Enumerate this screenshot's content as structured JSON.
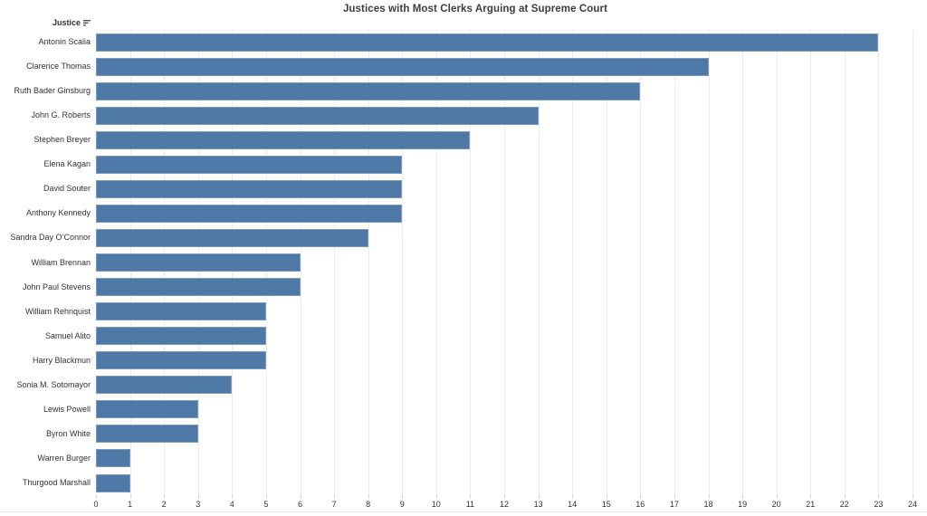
{
  "header": {
    "label": "Justice",
    "sort_icon": "sort-descending-icon"
  },
  "colors": {
    "bar": "#4e79a7",
    "text": "#333333",
    "grid": "#ededed",
    "divider": "#e6e6e6"
  },
  "chart_data": {
    "type": "bar",
    "orientation": "horizontal",
    "title": "Justices with Most Clerks Arguing at Supreme Court",
    "categories": [
      "Antonin Scalia",
      "Clarence Thomas",
      "Ruth Bader Ginsburg",
      "John G. Roberts",
      "Stephen Breyer",
      "Elena Kagan",
      "David Souter",
      "Anthony Kennedy",
      "Sandra Day O’Connor",
      "William Brennan",
      "John Paul Stevens",
      "William Rehnquist",
      "Samuel Alito",
      "Harry Blackmun",
      "Sonia M. Sotomayor",
      "Lewis Powell",
      "Byron White",
      "Warren Burger",
      "Thurgood Marshall"
    ],
    "values": [
      23,
      18,
      16,
      13,
      11,
      9,
      9,
      9,
      8,
      6,
      6,
      5,
      5,
      5,
      4,
      3,
      3,
      1,
      1
    ],
    "xlabel": "",
    "ylabel": "Justice",
    "xlim": [
      0,
      24
    ],
    "x_ticks": [
      0,
      1,
      2,
      3,
      4,
      5,
      6,
      7,
      8,
      9,
      10,
      11,
      12,
      13,
      14,
      15,
      16,
      17,
      18,
      19,
      20,
      21,
      22,
      23,
      24
    ],
    "grid": "vertical",
    "legend": "none",
    "bar_color": "#4e79a7"
  }
}
